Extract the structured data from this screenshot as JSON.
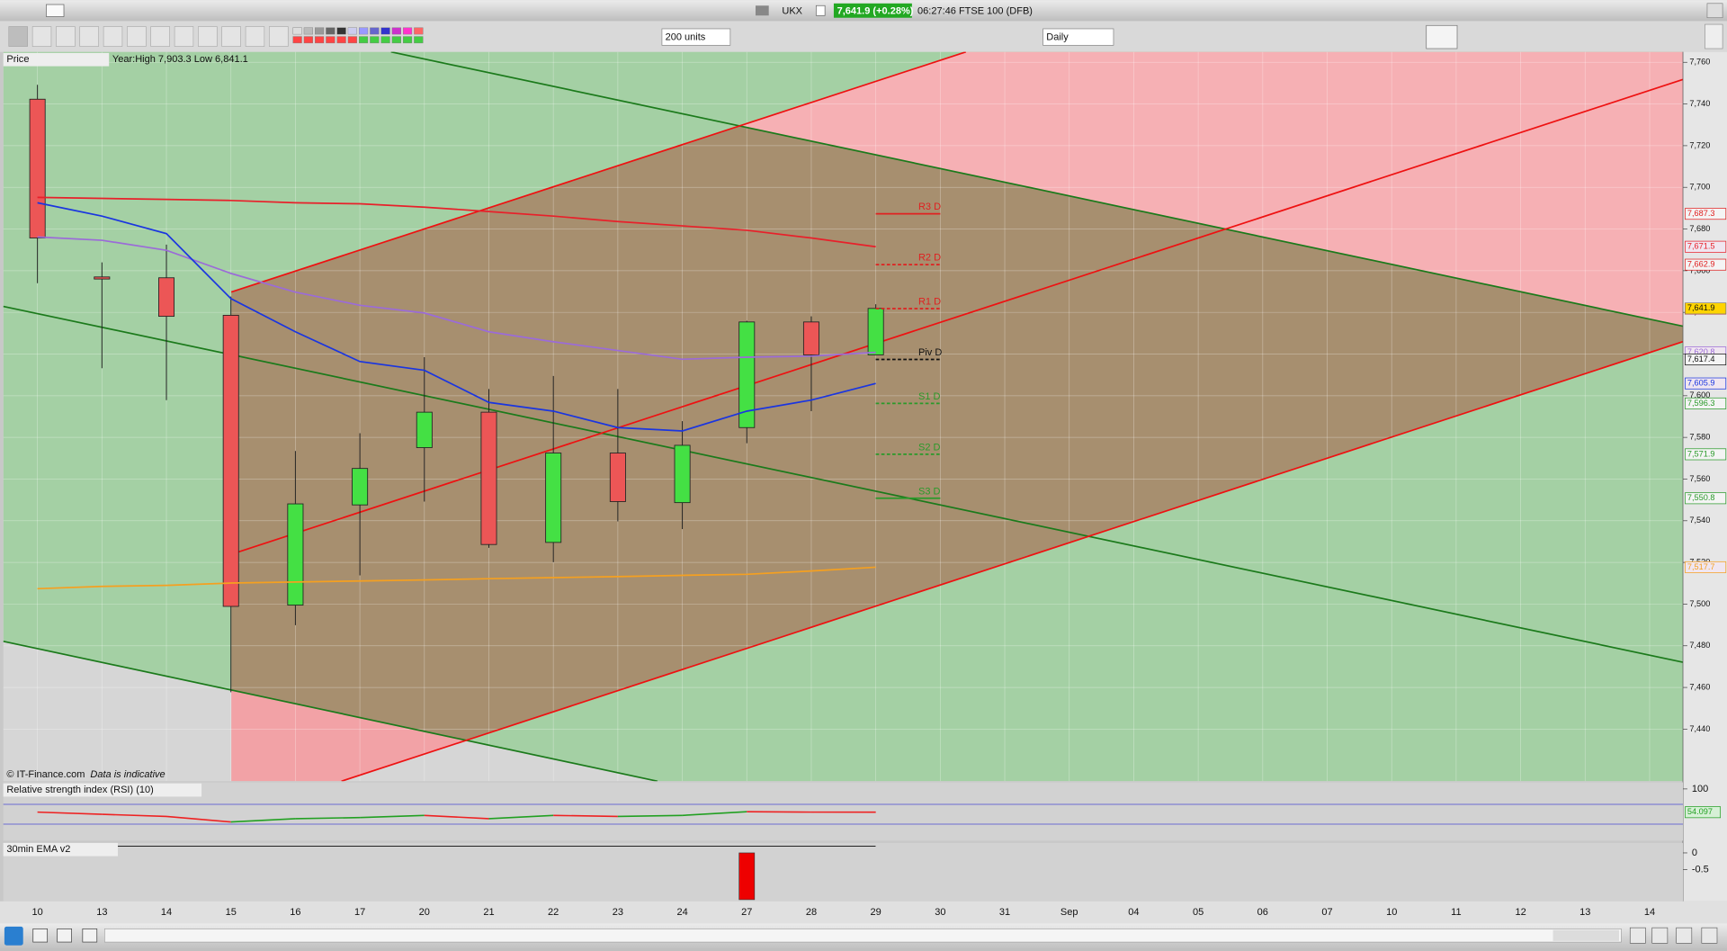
{
  "window": {
    "symbol": "UKX",
    "price": "7,641.9 (+0.28%)",
    "status": "06:27:46 FTSE 100 (DFB)"
  },
  "toolbar": {
    "size": "200 units",
    "interval": "Daily"
  },
  "footer": {
    "copyright": "© IT-Finance.com",
    "note": "Data is indicative"
  },
  "chart_data": [
    {
      "type": "candlestick",
      "title": "Price",
      "subtitle": "Year:High 7,903.3 Low 6,841.1",
      "categories": [
        "10",
        "13",
        "14",
        "15",
        "16",
        "17",
        "20",
        "21",
        "22",
        "23",
        "24",
        "27",
        "28",
        "29",
        "30",
        "31",
        "Sep",
        "04",
        "05",
        "06",
        "07",
        "10",
        "11",
        "12",
        "13",
        "14"
      ],
      "open": [
        7742.3,
        7657.0,
        7656.6,
        7638.6,
        7499.5,
        7547.6,
        7575.1,
        7592.1,
        7529.6,
        7572.5,
        7548.7,
        7584.7,
        7635.4,
        7619.6,
        null,
        null,
        null,
        null,
        null,
        null,
        null,
        null,
        null,
        null,
        null,
        null
      ],
      "high": [
        7749.2,
        7664.0,
        7672.5,
        7647.6,
        7573.5,
        7582.0,
        7618.5,
        7603.2,
        7609.5,
        7603.2,
        7587.8,
        7636.0,
        7638.1,
        7643.9,
        null,
        null,
        null,
        null,
        null,
        null,
        null,
        null,
        null,
        null,
        null,
        null
      ],
      "low": [
        7654.0,
        7613.2,
        7597.9,
        7457.7,
        7489.9,
        7513.8,
        7549.2,
        7527.0,
        7520.1,
        7539.7,
        7536.0,
        7577.2,
        7592.6,
        7619.6,
        null,
        null,
        null,
        null,
        null,
        null,
        null,
        null,
        null,
        null,
        null,
        null
      ],
      "close": [
        7675.7,
        7656.0,
        7638.1,
        7498.9,
        7548.1,
        7565.1,
        7592.1,
        7528.6,
        7572.5,
        7549.2,
        7576.2,
        7635.4,
        7619.6,
        7641.9,
        null,
        null,
        null,
        null,
        null,
        null,
        null,
        null,
        null,
        null,
        null,
        null
      ],
      "close_labels": [
        null,
        null,
        null,
        null,
        null,
        null,
        null,
        null,
        null,
        null,
        null,
        null,
        null,
        "7,641.9",
        null,
        null,
        null,
        null,
        null,
        null,
        null,
        null,
        null,
        null,
        null,
        null
      ],
      "up_color": "#44e044",
      "down_color": "#ec5656",
      "series": [
        {
          "color": "#e8202a",
          "values": [
            7695.2,
            7694.7,
            7694.2,
            7693.7,
            7692.6,
            7692.1,
            7690.5,
            7688.4,
            7686.2,
            7683.6,
            7681.5,
            7679.4,
            7675.7,
            7671.5,
            null,
            null,
            null,
            null,
            null,
            null,
            null,
            null,
            null,
            null,
            null,
            null
          ],
          "value_labels": [
            null,
            null,
            null,
            null,
            null,
            null,
            null,
            null,
            null,
            null,
            null,
            null,
            null,
            "7,671.5",
            null,
            null,
            null,
            null,
            null,
            null,
            null,
            null,
            null,
            null,
            null,
            null
          ]
        },
        {
          "color": "#9b6bd8",
          "values": [
            7676.2,
            7674.6,
            7669.8,
            7658.7,
            7649.7,
            7643.4,
            7639.7,
            7630.7,
            7625.9,
            7621.7,
            7617.5,
            7618.5,
            7619.0,
            7620.8,
            null,
            null,
            null,
            null,
            null,
            null,
            null,
            null,
            null,
            null,
            null,
            null
          ],
          "value_labels": [
            null,
            null,
            null,
            null,
            null,
            null,
            null,
            null,
            null,
            null,
            null,
            null,
            null,
            "7,620.8",
            null,
            null,
            null,
            null,
            null,
            null,
            null,
            null,
            null,
            null,
            null,
            null
          ]
        },
        {
          "color": "#1a35e0",
          "values": [
            7692.6,
            7686.2,
            7677.8,
            7646.6,
            7630.7,
            7616.4,
            7612.2,
            7596.8,
            7592.6,
            7584.7,
            7583.1,
            7592.6,
            7597.9,
            7605.9,
            null,
            null,
            null,
            null,
            null,
            null,
            null,
            null,
            null,
            null,
            null,
            null
          ],
          "value_labels": [
            null,
            null,
            null,
            null,
            null,
            null,
            null,
            null,
            null,
            null,
            null,
            null,
            null,
            "7,605.9",
            null,
            null,
            null,
            null,
            null,
            null,
            null,
            null,
            null,
            null,
            null,
            null
          ]
        },
        {
          "color": "#f5a020",
          "values": [
            7507.4,
            7508.5,
            7509.0,
            7510.1,
            7510.6,
            7511.1,
            7511.6,
            7512.2,
            7512.7,
            7513.2,
            7513.8,
            7514.3,
            7515.9,
            7517.7,
            null,
            null,
            null,
            null,
            null,
            null,
            null,
            null,
            null,
            null,
            null,
            null
          ],
          "value_labels": [
            null,
            null,
            null,
            null,
            null,
            null,
            null,
            null,
            null,
            null,
            null,
            null,
            null,
            "7,517.7",
            null,
            null,
            null,
            null,
            null,
            null,
            null,
            null,
            null,
            null,
            null,
            null
          ]
        }
      ],
      "levels": [
        {
          "name": "R3 D",
          "value": 7687.3,
          "label": "7,687.3",
          "color": "#e02020",
          "dashed": false
        },
        {
          "name": "R2 D",
          "value": 7662.9,
          "label": "7,662.9",
          "color": "#e02020",
          "dashed": true
        },
        {
          "name": "R1 D",
          "value": 7641.8,
          "label": "7,641.8",
          "color": "#e02020",
          "dashed": true
        },
        {
          "name": "Piv D",
          "value": 7617.4,
          "label": "7,617.4",
          "color": "#111111",
          "dashed": true
        },
        {
          "name": "S1 D",
          "value": 7596.3,
          "label": "7,596.3",
          "color": "#2a9a2a",
          "dashed": true
        },
        {
          "name": "S2 D",
          "value": 7571.9,
          "label": "7,571.9",
          "color": "#2a9a2a",
          "dashed": true
        },
        {
          "name": "S3 D",
          "value": 7550.8,
          "label": "7,550.8",
          "color": "#2a9a2a",
          "dashed": false
        }
      ],
      "ylim": [
        7415,
        7765
      ],
      "yticks": [
        {
          "value": 7440,
          "label": "7,440"
        },
        {
          "value": 7460,
          "label": "7,460"
        },
        {
          "value": 7480,
          "label": "7,480"
        },
        {
          "value": 7500,
          "label": "7,500"
        },
        {
          "value": 7520,
          "label": "7,520"
        },
        {
          "value": 7540,
          "label": "7,540"
        },
        {
          "value": 7560,
          "label": "7,560"
        },
        {
          "value": 7580,
          "label": "7,580"
        },
        {
          "value": 7600,
          "label": "7,600"
        },
        {
          "value": 7620,
          "label": "7,620"
        },
        {
          "value": 7640,
          "label": "7,640"
        },
        {
          "value": 7660,
          "label": "7,660"
        },
        {
          "value": 7680,
          "label": "7,680"
        },
        {
          "value": 7700,
          "label": "7,700"
        },
        {
          "value": 7720,
          "label": "7,720"
        },
        {
          "value": 7740,
          "label": "7,740"
        },
        {
          "value": 7760,
          "label": "7,760"
        }
      ],
      "grid": true
    },
    {
      "type": "line",
      "title": "Relative strength index (RSI) (10)",
      "values": [
        54.3,
        50.0,
        45.7,
        34.8,
        41.3,
        43.5,
        47.8,
        41.3,
        47.8,
        45.7,
        47.8,
        55.0,
        54.3,
        54.097
      ],
      "up_color": "#22a022",
      "down_color": "#ee2222",
      "ylim": [
        0,
        100
      ],
      "yticks": [
        100
      ]
    },
    {
      "type": "bar",
      "title": "30min EMA v2",
      "values": [
        null,
        null,
        null,
        null,
        null,
        null,
        null,
        null,
        null,
        null,
        null,
        -1.4,
        null,
        null
      ],
      "color": "#ee0000",
      "ylim": [
        -1.45,
        0.2
      ],
      "yticks": [
        0,
        -0.5
      ]
    }
  ]
}
